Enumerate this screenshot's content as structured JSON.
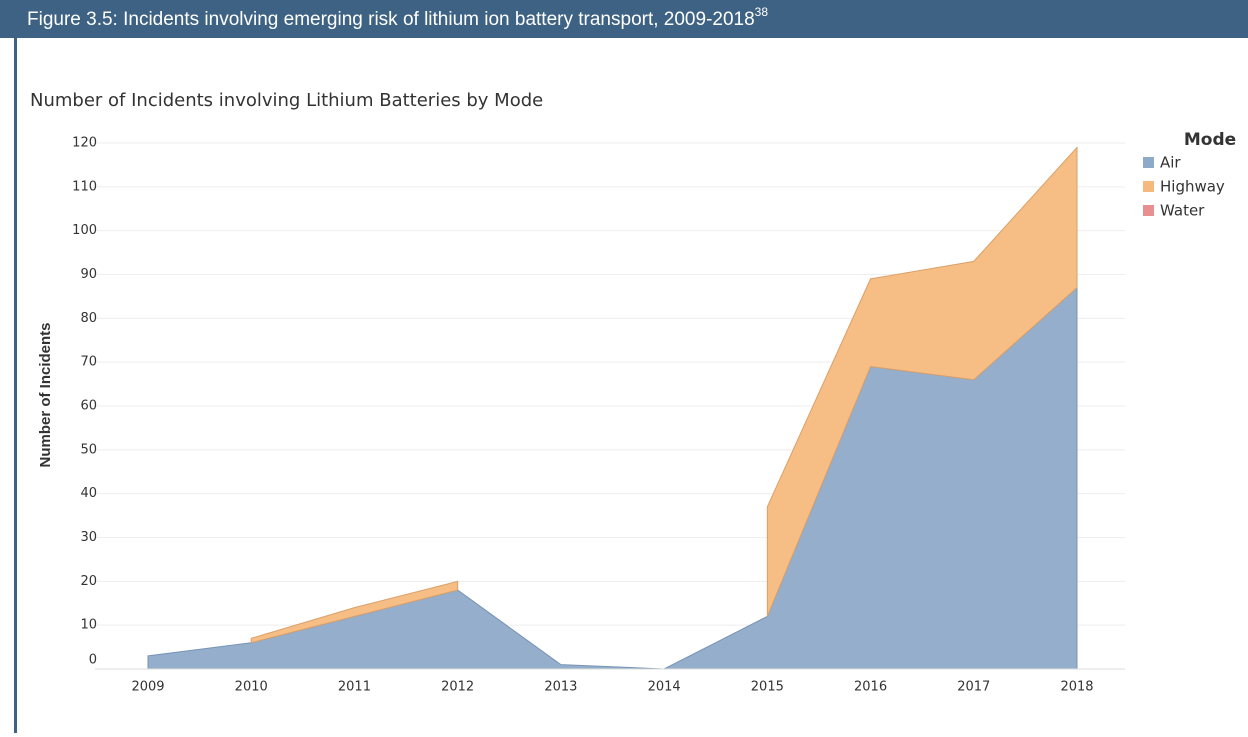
{
  "header": {
    "title": "Figure 3.5: Incidents involving emerging risk of lithium ion battery transport, 2009-2018",
    "superscript": "38"
  },
  "chart_data": {
    "type": "area",
    "stacked": true,
    "title": "Number of Incidents involving Lithium Batteries by Mode",
    "y_label": "Number of Incidents",
    "legend_title": "Mode",
    "categories": [
      "2009",
      "2010",
      "2011",
      "2012",
      "2013",
      "2014",
      "2015",
      "2016",
      "2017",
      "2018"
    ],
    "series": [
      {
        "name": "Air",
        "color": "#8eaac9",
        "values": [
          3,
          6,
          12,
          18,
          1,
          0,
          12,
          69,
          66,
          87
        ]
      },
      {
        "name": "Highway",
        "color": "#f5b97d",
        "values": [
          null,
          1,
          2,
          2,
          null,
          null,
          25,
          20,
          27,
          32
        ]
      },
      {
        "name": "Water",
        "color": "#e8908f",
        "values": [
          null,
          null,
          null,
          null,
          null,
          null,
          null,
          null,
          null,
          null
        ]
      }
    ],
    "ylim": [
      0,
      120
    ],
    "yticks": [
      0,
      10,
      20,
      30,
      40,
      50,
      60,
      70,
      80,
      90,
      100,
      110,
      120
    ],
    "grid": true
  }
}
